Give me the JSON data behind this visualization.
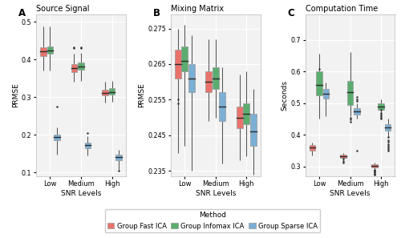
{
  "title_A": "Source Signal",
  "title_B": "Mixing Matrix",
  "title_C": "Computation Time",
  "xlabel": "SNR Levels",
  "ylabel_A": "PRMSE",
  "ylabel_B": "PRMSE",
  "ylabel_C": "Seconds",
  "snr_levels": [
    "Low",
    "Medium",
    "High"
  ],
  "methods": [
    "Group Fast ICA",
    "Group Infomax ICA",
    "Group Sparse ICA"
  ],
  "colors": [
    "#E8736C",
    "#5BAD6F",
    "#7BAFD4"
  ],
  "figure_bg": "#FFFFFF",
  "panel_bg": "#F2F2F2",
  "grid_color": "#FFFFFF",
  "A": {
    "ylim": [
      0.09,
      0.52
    ],
    "yticks": [
      0.1,
      0.2,
      0.3,
      0.4,
      0.5
    ],
    "data": {
      "Low": {
        "fast": {
          "q1": 0.408,
          "med": 0.422,
          "q3": 0.432,
          "whislo": 0.37,
          "whishi": 0.488,
          "fliers": []
        },
        "infomax": {
          "q1": 0.415,
          "med": 0.424,
          "q3": 0.434,
          "whislo": 0.37,
          "whishi": 0.487,
          "fliers": []
        },
        "sparse": {
          "q1": 0.185,
          "med": 0.193,
          "q3": 0.2,
          "whislo": 0.148,
          "whishi": 0.22,
          "fliers": [
            0.275
          ]
        }
      },
      "Medium": {
        "fast": {
          "q1": 0.367,
          "med": 0.378,
          "q3": 0.388,
          "whislo": 0.34,
          "whishi": 0.415,
          "fliers": [
            0.43,
            0.432
          ]
        },
        "infomax": {
          "q1": 0.372,
          "med": 0.381,
          "q3": 0.392,
          "whislo": 0.342,
          "whishi": 0.418,
          "fliers": [
            0.43,
            0.433
          ]
        },
        "sparse": {
          "q1": 0.163,
          "med": 0.172,
          "q3": 0.178,
          "whislo": 0.145,
          "whishi": 0.196,
          "fliers": [
            0.205
          ]
        }
      },
      "High": {
        "fast": {
          "q1": 0.305,
          "med": 0.312,
          "q3": 0.32,
          "whislo": 0.285,
          "whishi": 0.34,
          "fliers": []
        },
        "infomax": {
          "q1": 0.307,
          "med": 0.314,
          "q3": 0.323,
          "whislo": 0.287,
          "whishi": 0.342,
          "fliers": []
        },
        "sparse": {
          "q1": 0.133,
          "med": 0.14,
          "q3": 0.147,
          "whislo": 0.107,
          "whishi": 0.16,
          "fliers": [
            0.105
          ]
        }
      }
    }
  },
  "B": {
    "ylim": [
      0.2335,
      0.279
    ],
    "yticks": [
      0.235,
      0.245,
      0.255,
      0.265,
      0.275
    ],
    "data": {
      "Low": {
        "fast": {
          "q1": 0.261,
          "med": 0.265,
          "q3": 0.269,
          "whislo": 0.24,
          "whishi": 0.275,
          "fliers": [
            0.254,
            0.255
          ]
        },
        "infomax": {
          "q1": 0.263,
          "med": 0.266,
          "q3": 0.27,
          "whislo": 0.242,
          "whishi": 0.276,
          "fliers": []
        },
        "sparse": {
          "q1": 0.257,
          "med": 0.261,
          "q3": 0.265,
          "whislo": 0.235,
          "whishi": 0.273,
          "fliers": []
        }
      },
      "Medium": {
        "fast": {
          "q1": 0.257,
          "med": 0.26,
          "q3": 0.263,
          "whislo": 0.249,
          "whishi": 0.272,
          "fliers": []
        },
        "infomax": {
          "q1": 0.258,
          "med": 0.261,
          "q3": 0.264,
          "whislo": 0.25,
          "whishi": 0.272,
          "fliers": []
        },
        "sparse": {
          "q1": 0.249,
          "med": 0.253,
          "q3": 0.257,
          "whislo": 0.237,
          "whishi": 0.264,
          "fliers": []
        }
      },
      "High": {
        "fast": {
          "q1": 0.247,
          "med": 0.25,
          "q3": 0.253,
          "whislo": 0.238,
          "whishi": 0.262,
          "fliers": []
        },
        "infomax": {
          "q1": 0.248,
          "med": 0.251,
          "q3": 0.254,
          "whislo": 0.239,
          "whishi": 0.263,
          "fliers": []
        },
        "sparse": {
          "q1": 0.242,
          "med": 0.246,
          "q3": 0.251,
          "whislo": 0.234,
          "whishi": 0.258,
          "fliers": []
        }
      }
    }
  },
  "C": {
    "ylim": [
      0.27,
      0.78
    ],
    "yticks": [
      0.3,
      0.4,
      0.5,
      0.6,
      0.7
    ],
    "data": {
      "Low": {
        "fast": {
          "q1": 0.35,
          "med": 0.36,
          "q3": 0.368,
          "whislo": 0.335,
          "whishi": 0.375,
          "fliers": []
        },
        "infomax": {
          "q1": 0.525,
          "med": 0.557,
          "q3": 0.6,
          "whislo": 0.45,
          "whishi": 0.655,
          "fliers": [
            0.608
          ]
        },
        "sparse": {
          "q1": 0.515,
          "med": 0.53,
          "q3": 0.545,
          "whislo": 0.46,
          "whishi": 0.565,
          "fliers": []
        }
      },
      "Medium": {
        "fast": {
          "q1": 0.327,
          "med": 0.332,
          "q3": 0.337,
          "whislo": 0.318,
          "whishi": 0.343,
          "fliers": [
            0.325,
            0.317,
            0.313
          ]
        },
        "infomax": {
          "q1": 0.495,
          "med": 0.535,
          "q3": 0.57,
          "whislo": 0.46,
          "whishi": 0.66,
          "fliers": [
            0.455,
            0.448,
            0.441
          ]
        },
        "sparse": {
          "q1": 0.465,
          "med": 0.475,
          "q3": 0.485,
          "whislo": 0.452,
          "whishi": 0.5,
          "fliers": [
            0.508,
            0.512,
            0.52,
            0.35
          ]
        }
      },
      "High": {
        "fast": {
          "q1": 0.298,
          "med": 0.303,
          "q3": 0.307,
          "whislo": 0.29,
          "whishi": 0.313,
          "fliers": [
            0.29,
            0.287,
            0.284,
            0.281,
            0.278,
            0.276,
            0.274
          ]
        },
        "infomax": {
          "q1": 0.478,
          "med": 0.49,
          "q3": 0.5,
          "whislo": 0.458,
          "whishi": 0.512,
          "fliers": [
            0.478,
            0.47,
            0.465,
            0.46,
            0.455,
            0.452
          ]
        },
        "sparse": {
          "q1": 0.413,
          "med": 0.423,
          "q3": 0.433,
          "whislo": 0.392,
          "whishi": 0.45,
          "fliers": [
            0.392,
            0.382,
            0.377,
            0.37,
            0.365,
            0.36,
            0.355,
            0.35
          ]
        }
      }
    }
  }
}
